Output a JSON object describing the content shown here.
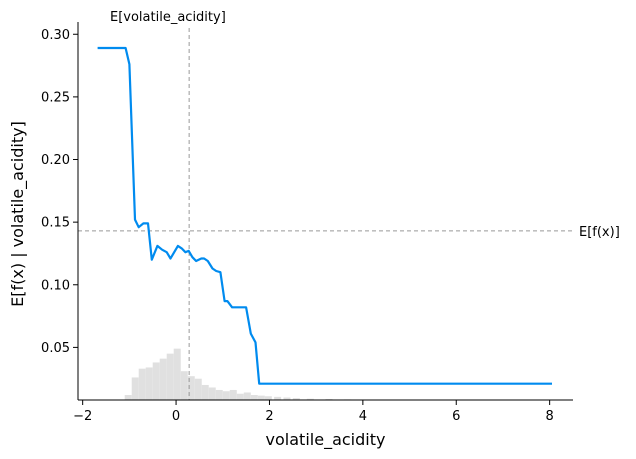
{
  "chart_data": {
    "type": "line",
    "xlabel": "volatile_acidity",
    "ylabel": "E[f(x) | volatile_acidity]",
    "xlim": [
      -2.1,
      8.5
    ],
    "ylim": [
      0.008,
      0.305
    ],
    "x_ticks": [
      -2,
      0,
      2,
      4,
      6,
      8
    ],
    "y_ticks": [
      0.05,
      0.1,
      0.15,
      0.2,
      0.25,
      0.3
    ],
    "x_tick_labels": [
      "−2",
      "0",
      "2",
      "4",
      "6",
      "8"
    ],
    "y_tick_labels": [
      "0.05",
      "0.10",
      "0.15",
      "0.20",
      "0.25",
      "0.30"
    ],
    "spines": "left and bottom only",
    "grid": false,
    "series": [
      {
        "type": "line",
        "color": "#008bef",
        "x": [
          -1.68,
          -1.08,
          -1.0,
          -0.88,
          -0.8,
          -0.7,
          -0.6,
          -0.52,
          -0.4,
          -0.3,
          -0.2,
          -0.12,
          -0.04,
          0.04,
          0.12,
          0.2,
          0.27,
          0.35,
          0.43,
          0.54,
          0.6,
          0.68,
          0.78,
          0.86,
          0.95,
          1.04,
          1.1,
          1.2,
          1.3,
          1.5,
          1.6,
          1.7,
          1.78,
          8.05
        ],
        "y": [
          0.289,
          0.289,
          0.276,
          0.152,
          0.146,
          0.149,
          0.149,
          0.12,
          0.131,
          0.128,
          0.126,
          0.121,
          0.126,
          0.131,
          0.129,
          0.126,
          0.127,
          0.122,
          0.119,
          0.121,
          0.121,
          0.119,
          0.113,
          0.111,
          0.11,
          0.087,
          0.087,
          0.082,
          0.082,
          0.082,
          0.061,
          0.054,
          0.021,
          0.021
        ]
      }
    ],
    "histogram": {
      "color": "#e0e0e0",
      "bin_left_edges": [
        -1.1,
        -0.95,
        -0.8,
        -0.65,
        -0.5,
        -0.35,
        -0.2,
        -0.05,
        0.1,
        0.25,
        0.4,
        0.55,
        0.7,
        0.85,
        1.0,
        1.15,
        1.3,
        1.45,
        1.6,
        1.75,
        1.9,
        2.1,
        2.3,
        2.5,
        2.8,
        3.2,
        3.6
      ],
      "bin_width": 0.15,
      "heights": [
        0.004,
        0.018,
        0.025,
        0.026,
        0.03,
        0.033,
        0.037,
        0.041,
        0.023,
        0.019,
        0.017,
        0.012,
        0.01,
        0.008,
        0.007,
        0.008,
        0.005,
        0.006,
        0.004,
        0.0035,
        0.003,
        0.0025,
        0.002,
        0.0015,
        0.001,
        0.0008,
        0.0005
      ]
    },
    "hlines": [
      {
        "y": 0.143,
        "label": "E[f(x)]",
        "style": "dashed",
        "color": "#999999"
      }
    ],
    "vlines": [
      {
        "x": 0.28,
        "label": "E[volatile_acidity]",
        "style": "dashed",
        "color": "#999999"
      }
    ]
  }
}
